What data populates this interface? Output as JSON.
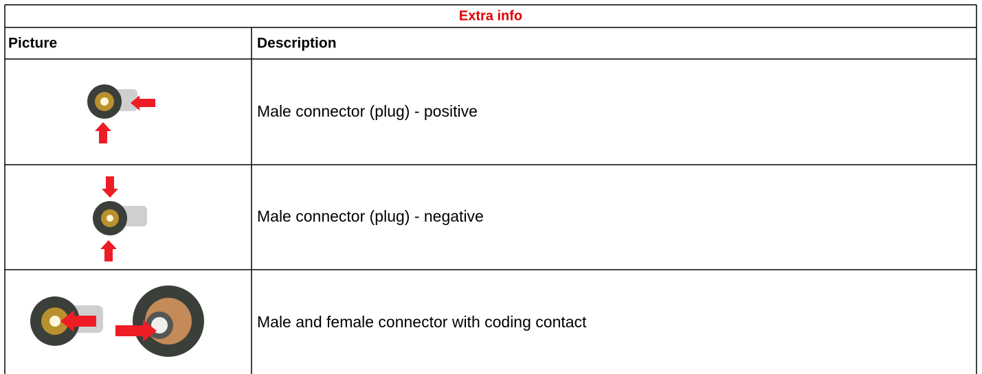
{
  "table": {
    "title": "Extra info",
    "headers": [
      "Picture",
      "Description"
    ],
    "rows": [
      "Male connector (plug) - positive",
      "Male connector (plug) - negative",
      "Male and female connector with coding contact"
    ]
  }
}
